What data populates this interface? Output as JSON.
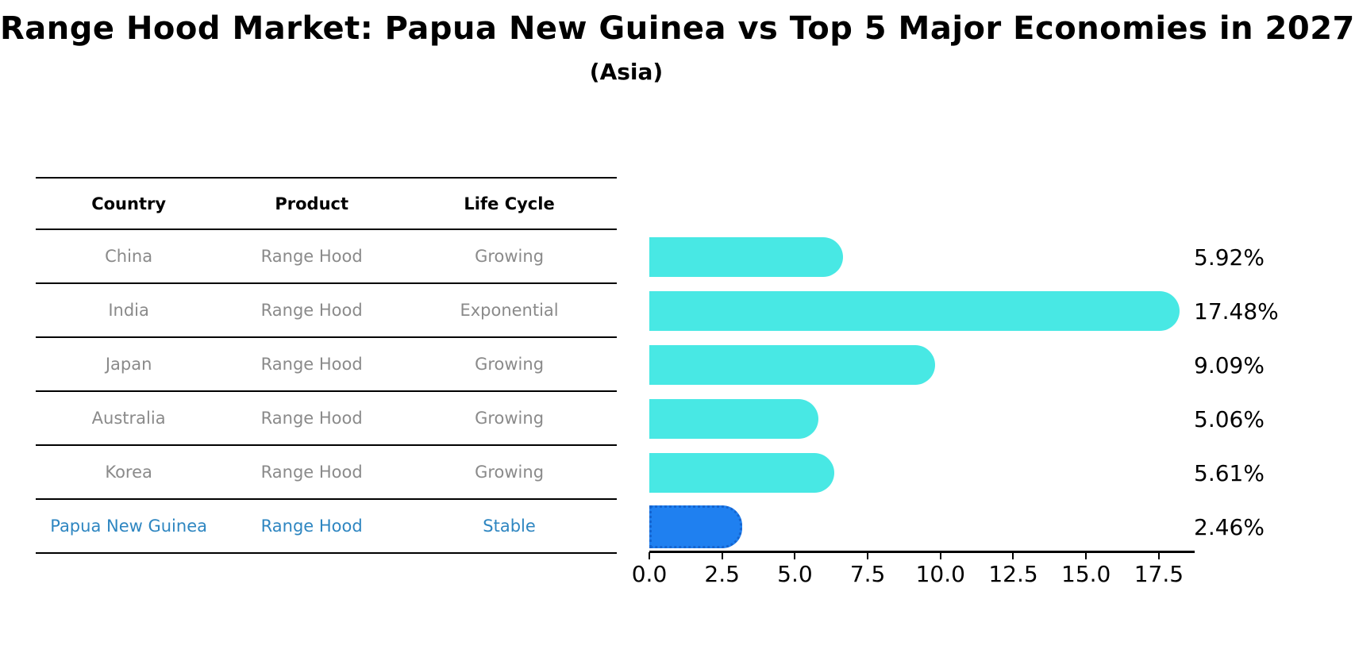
{
  "title": "Range Hood Market: Papua New Guinea vs Top 5 Major Economies in 2027",
  "subtitle": "(Asia)",
  "table": {
    "headers": [
      "Country",
      "Product",
      "Life Cycle"
    ],
    "rows": [
      {
        "country": "China",
        "product": "Range Hood",
        "life_cycle": "Growing",
        "highlight": false
      },
      {
        "country": "India",
        "product": "Range Hood",
        "life_cycle": "Exponential",
        "highlight": false
      },
      {
        "country": "Japan",
        "product": "Range Hood",
        "life_cycle": "Growing",
        "highlight": false
      },
      {
        "country": "Australia",
        "product": "Range Hood",
        "life_cycle": "Growing",
        "highlight": false
      },
      {
        "country": "Korea",
        "product": "Range Hood",
        "life_cycle": "Growing",
        "highlight": false
      },
      {
        "country": "Papua New Guinea",
        "product": "Range Hood",
        "life_cycle": "Stable",
        "highlight": true
      }
    ]
  },
  "chart_data": {
    "type": "bar",
    "orientation": "horizontal",
    "title": "Range Hood Market: Papua New Guinea vs Top 5 Major Economies in 2027",
    "subtitle": "(Asia)",
    "categories": [
      "China",
      "India",
      "Japan",
      "Australia",
      "Korea",
      "Papua New Guinea"
    ],
    "values": [
      5.92,
      17.48,
      9.09,
      5.06,
      5.61,
      2.46
    ],
    "value_labels": [
      "5.92%",
      "17.48%",
      "9.09%",
      "5.06%",
      "5.61%",
      "2.46%"
    ],
    "xlabel": "",
    "ylabel": "",
    "xlim": [
      0,
      18.73
    ],
    "x_ticks": [
      "0.0",
      "2.5",
      "5.0",
      "7.5",
      "10.0",
      "12.5",
      "15.0",
      "17.5"
    ],
    "grid": false,
    "legend": "none",
    "bar_color": "#48e8e4",
    "highlight_bar_color": "#1f80f0",
    "highlight_bar_border_color": "#1565d0",
    "highlight_text_color": "#2e86c1"
  }
}
